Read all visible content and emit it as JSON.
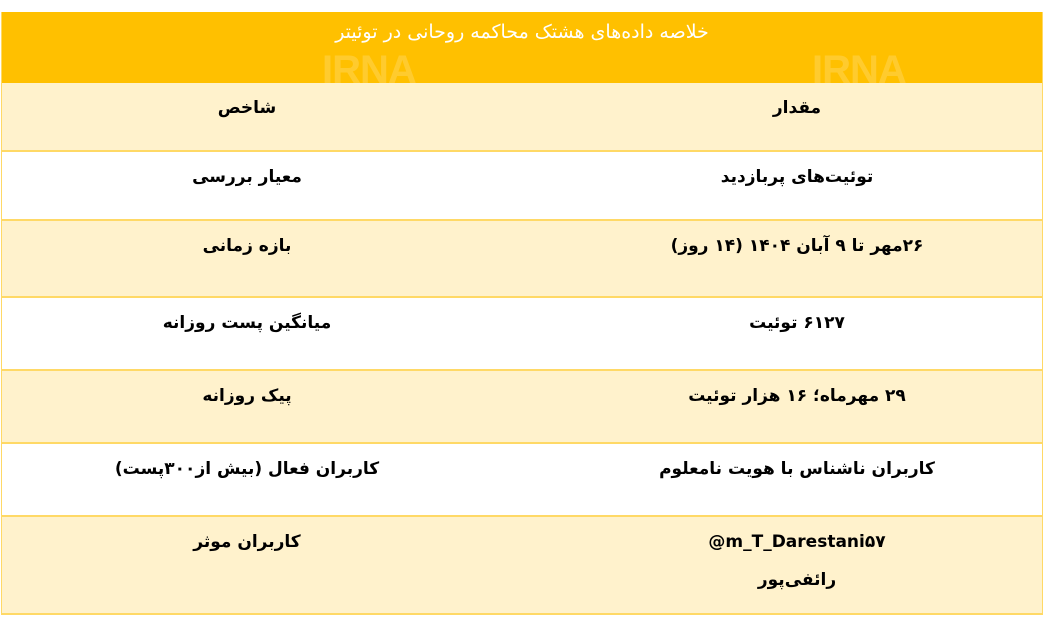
{
  "title": "خلاصه داده‌های هشتک محاکمه روحانی در توئیتر",
  "watermark": "IRNA",
  "colors": {
    "title_bg": "#ffc000",
    "row_light": "#fff2cc",
    "border": "#ffd966"
  },
  "header": {
    "indicator": "شاخص",
    "value": "مقدار"
  },
  "rows": [
    {
      "indicator": "معیار بررسی",
      "value": "توئیت‌های پربازدید"
    },
    {
      "indicator": "بازه زمانی",
      "value": "۲۶مهر تا ۹ آبان ۱۴۰۴ (۱۴ روز)"
    },
    {
      "indicator": "میانگین پست روزانه",
      "value": "۶۱۲۷ توئیت"
    },
    {
      "indicator": "پیک روزانه",
      "value": "۲۹ مهرماه؛ ۱۶ هزار توئیت"
    },
    {
      "indicator": "کاربران فعال (بیش از۳۰۰پست)",
      "value": "کاربران ناشناس با هویت نامعلوم"
    },
    {
      "indicator": "کاربران موثر",
      "value": "@m_T_Darestani۵۷",
      "value2": "رائفی‌پور"
    }
  ]
}
